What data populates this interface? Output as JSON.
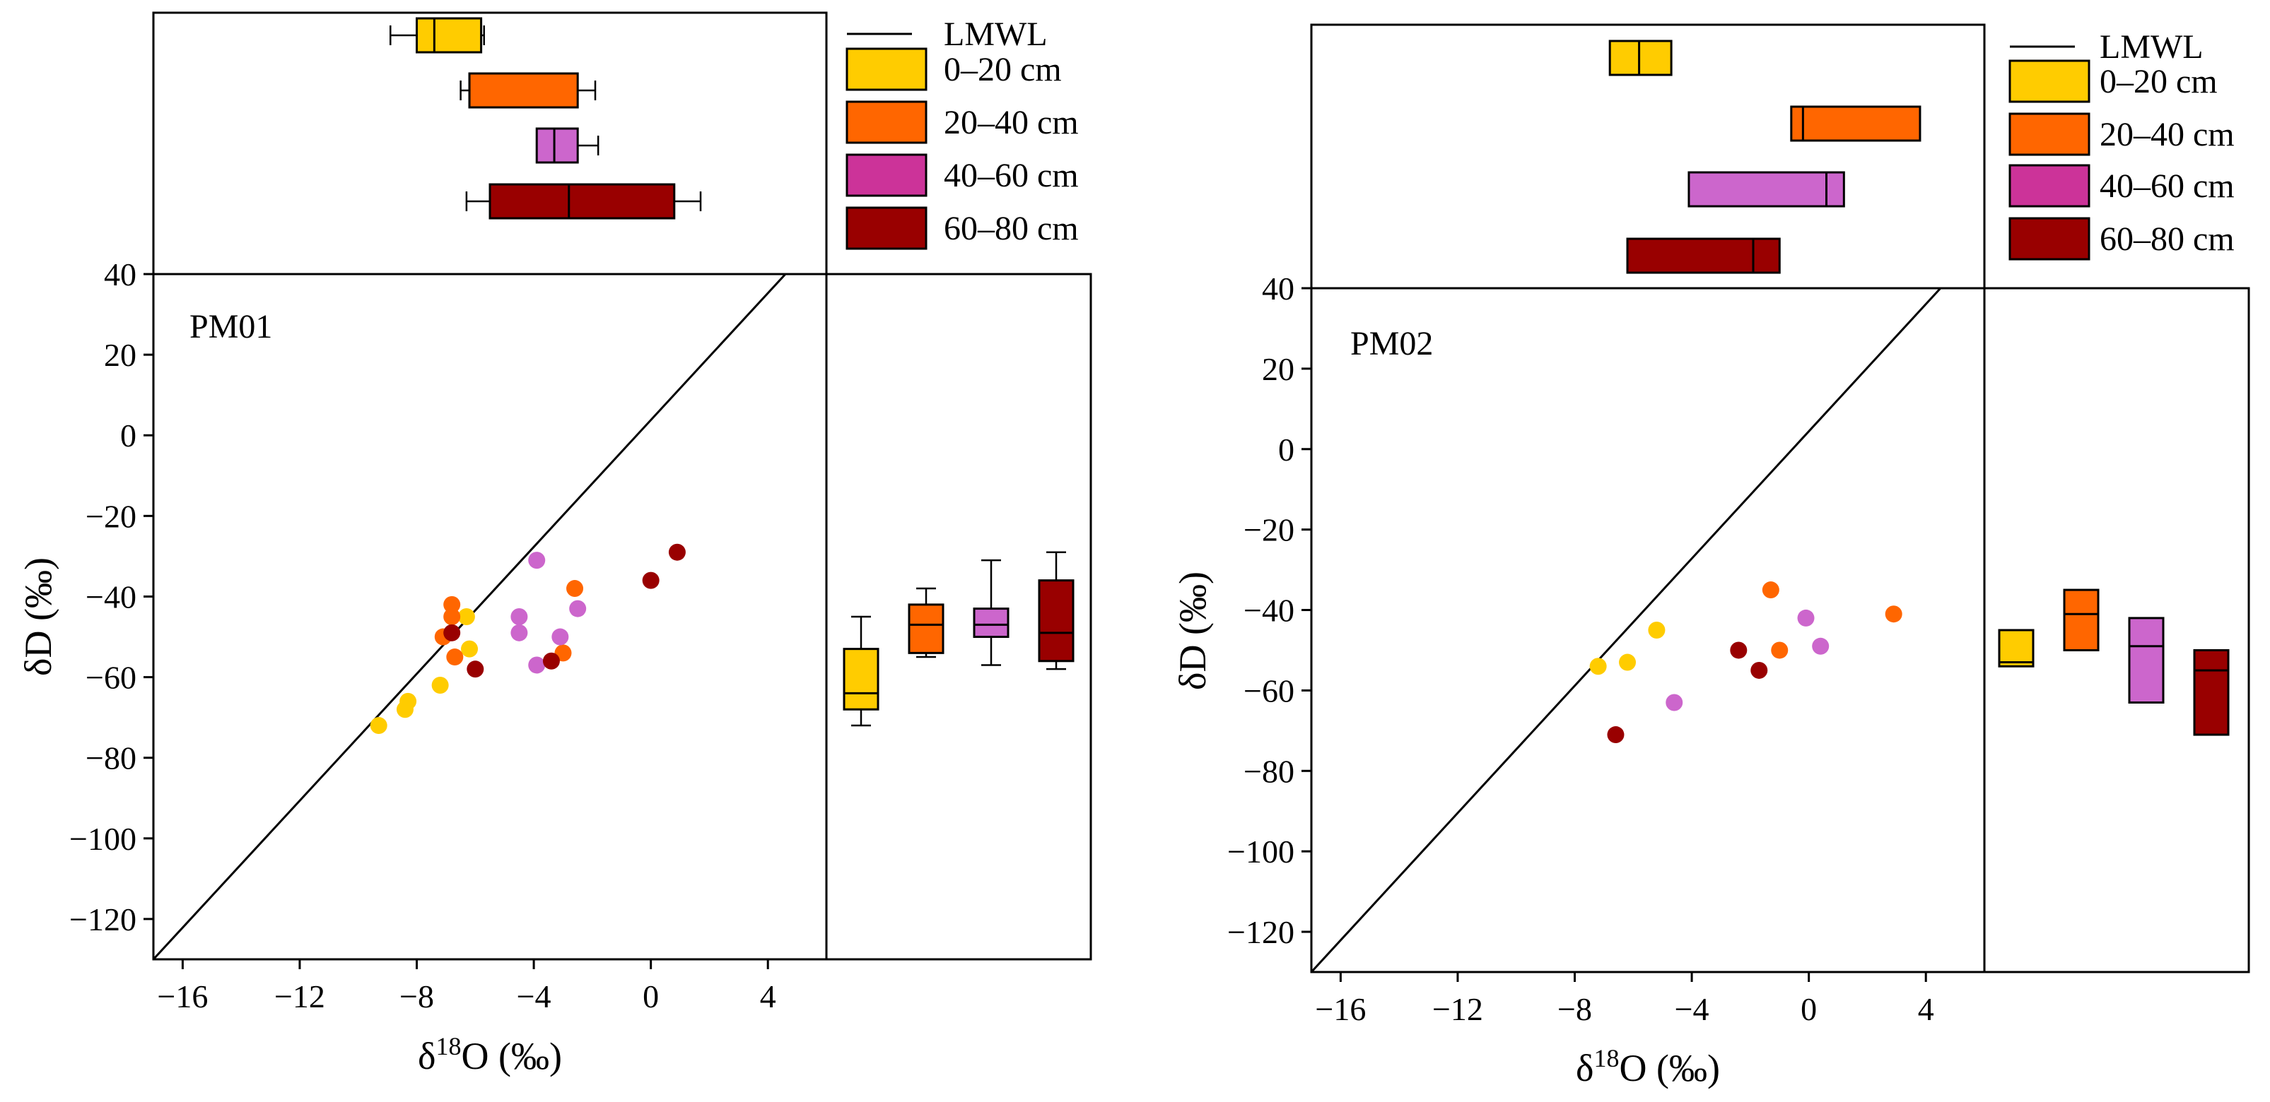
{
  "colors": {
    "0-20": "#FFCC00",
    "20-40": "#FF6600",
    "40-60": "#CC66CC",
    "60-80": "#990000",
    "legend_40-60": "#CC3399"
  },
  "legend": {
    "line_label": "LMWL",
    "entries": [
      "0–20 cm",
      "20–40 cm",
      "40–60 cm",
      "60–80 cm"
    ]
  },
  "chart_data": [
    {
      "type": "scatter",
      "label": "PM01",
      "xlabel": "δ¹⁸O (‰)",
      "ylabel": "δD (‰)",
      "xlim": [
        -17,
        6
      ],
      "ylim": [
        -130,
        40
      ],
      "xticks": [
        -16,
        -12,
        -8,
        -4,
        0,
        4
      ],
      "yticks": [
        40,
        20,
        0,
        -20,
        -40,
        -60,
        -80,
        -100,
        -120
      ],
      "lmwl_points": [
        [
          -17,
          -130
        ],
        [
          4.6,
          40
        ]
      ],
      "series": [
        {
          "key": "0-20",
          "points": [
            [
              -9.3,
              -72
            ],
            [
              -8.4,
              -68
            ],
            [
              -8.3,
              -66
            ],
            [
              -7.2,
              -62
            ],
            [
              -6.2,
              -53
            ],
            [
              -6.3,
              -45
            ]
          ]
        },
        {
          "key": "20-40",
          "points": [
            [
              -7.1,
              -50
            ],
            [
              -6.8,
              -42
            ],
            [
              -6.7,
              -55
            ],
            [
              -6.8,
              -45
            ],
            [
              -2.6,
              -38
            ],
            [
              -3.0,
              -54
            ]
          ]
        },
        {
          "key": "40-60",
          "points": [
            [
              -3.9,
              -31
            ],
            [
              -4.5,
              -45
            ],
            [
              -4.5,
              -49
            ],
            [
              -3.1,
              -50
            ],
            [
              -2.5,
              -43
            ],
            [
              -3.9,
              -57
            ]
          ]
        },
        {
          "key": "60-80",
          "points": [
            [
              0.9,
              -29
            ],
            [
              0.0,
              -36
            ],
            [
              -3.4,
              -56
            ],
            [
              -6.0,
              -58
            ],
            [
              -6.8,
              -49
            ]
          ]
        }
      ],
      "box_x": [
        {
          "key": "0-20",
          "q1": -8.0,
          "median": -7.4,
          "q3": -5.8,
          "wmin": -8.9,
          "wmax": -5.7
        },
        {
          "key": "20-40",
          "q1": -6.2,
          "median": -6.2,
          "q3": -2.5,
          "wmin": -6.5,
          "wmax": -1.9
        },
        {
          "key": "40-60",
          "q1": -3.9,
          "median": -3.3,
          "q3": -2.5,
          "wmin": -3.9,
          "wmax": -1.8
        },
        {
          "key": "60-80",
          "q1": -5.5,
          "median": -2.8,
          "q3": 0.8,
          "wmin": -6.3,
          "wmax": 1.7
        }
      ],
      "box_y": [
        {
          "key": "0-20",
          "q1": -68,
          "median": -64,
          "q3": -53,
          "wmin": -72,
          "wmax": -45
        },
        {
          "key": "20-40",
          "q1": -54,
          "median": -47,
          "q3": -42,
          "wmin": -55,
          "wmax": -38
        },
        {
          "key": "40-60",
          "q1": -50,
          "median": -47,
          "q3": -43,
          "wmin": -57,
          "wmax": -31
        },
        {
          "key": "60-80",
          "q1": -56,
          "median": -49,
          "q3": -36,
          "wmin": -58,
          "wmax": -29
        }
      ]
    },
    {
      "type": "scatter",
      "label": "PM02",
      "xlabel": "δ¹⁸O (‰)",
      "ylabel": "δD (‰)",
      "xlim": [
        -17,
        6
      ],
      "ylim": [
        -130,
        40
      ],
      "xticks": [
        -16,
        -12,
        -8,
        -4,
        0,
        4
      ],
      "yticks": [
        40,
        20,
        0,
        -20,
        -40,
        -60,
        -80,
        -100,
        -120
      ],
      "lmwl_points": [
        [
          -17,
          -130
        ],
        [
          4.5,
          40
        ]
      ],
      "series": [
        {
          "key": "0-20",
          "points": [
            [
              -7.2,
              -54
            ],
            [
              -6.2,
              -53
            ],
            [
              -5.2,
              -45
            ]
          ]
        },
        {
          "key": "20-40",
          "points": [
            [
              -1.3,
              -35
            ],
            [
              -1.0,
              -50
            ],
            [
              2.9,
              -41
            ]
          ]
        },
        {
          "key": "40-60",
          "points": [
            [
              -0.1,
              -42
            ],
            [
              0.4,
              -49
            ],
            [
              -4.6,
              -63
            ]
          ]
        },
        {
          "key": "60-80",
          "points": [
            [
              -2.4,
              -50
            ],
            [
              -1.7,
              -55
            ],
            [
              -6.6,
              -71
            ]
          ]
        }
      ],
      "box_x": [
        {
          "key": "0-20",
          "q1": -6.8,
          "median": -5.8,
          "q3": -4.7
        },
        {
          "key": "20-40",
          "q1": -0.6,
          "median": -0.2,
          "q3": 3.8
        },
        {
          "key": "40-60",
          "q1": -4.1,
          "median": 0.6,
          "q3": 1.2
        },
        {
          "key": "60-80",
          "q1": -6.2,
          "median": -1.9,
          "q3": -1.0
        }
      ],
      "box_y": [
        {
          "key": "0-20",
          "q1": -54,
          "median": -53,
          "q3": -45
        },
        {
          "key": "20-40",
          "q1": -50,
          "median": -41,
          "q3": -35
        },
        {
          "key": "40-60",
          "q1": -63,
          "median": -49,
          "q3": -42
        },
        {
          "key": "60-80",
          "q1": -71,
          "median": -55,
          "q3": -50
        }
      ]
    }
  ]
}
